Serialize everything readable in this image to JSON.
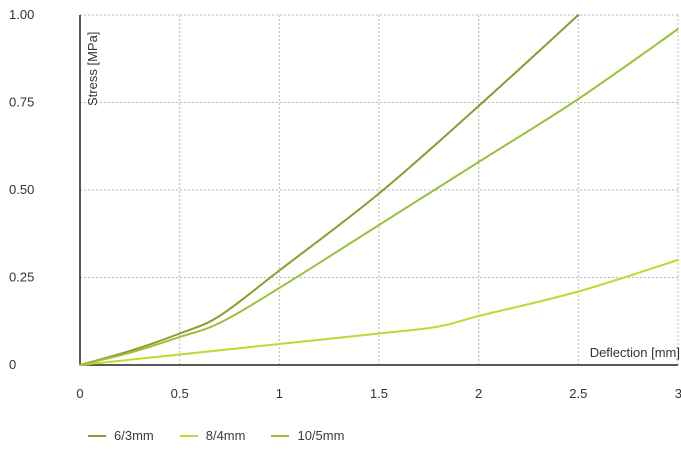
{
  "chart_data": {
    "type": "line",
    "xlabel": "Deflection [mm]",
    "ylabel": "Stress [MPa]",
    "xlim": [
      0,
      3
    ],
    "ylim": [
      0,
      1.0
    ],
    "x_ticks": [
      "0",
      "0.5",
      "1",
      "1.5",
      "2",
      "2.5",
      "3"
    ],
    "y_ticks": [
      "0",
      "0.25",
      "0.50",
      "0.75",
      "1.00"
    ],
    "grid": true,
    "legend_position": "bottom-left",
    "series": [
      {
        "name": "6/3mm",
        "color": "#8f9a2e",
        "x": [
          0,
          0.25,
          0.5,
          0.7,
          1.0,
          1.5,
          2.0,
          2.5
        ],
        "y": [
          0,
          0.04,
          0.09,
          0.14,
          0.27,
          0.49,
          0.74,
          1.0
        ]
      },
      {
        "name": "8/4mm",
        "color": "#c8d432",
        "x": [
          0,
          0.5,
          1.0,
          1.5,
          1.8,
          2.0,
          2.5,
          3.0
        ],
        "y": [
          0,
          0.03,
          0.06,
          0.09,
          0.11,
          0.14,
          0.21,
          0.3
        ]
      },
      {
        "name": "10/5mm",
        "color": "#99c23a",
        "x": [
          0,
          0.25,
          0.5,
          0.7,
          1.0,
          1.5,
          2.0,
          2.5,
          3.0
        ],
        "y": [
          0,
          0.035,
          0.08,
          0.12,
          0.22,
          0.4,
          0.58,
          0.76,
          0.96
        ]
      }
    ]
  }
}
